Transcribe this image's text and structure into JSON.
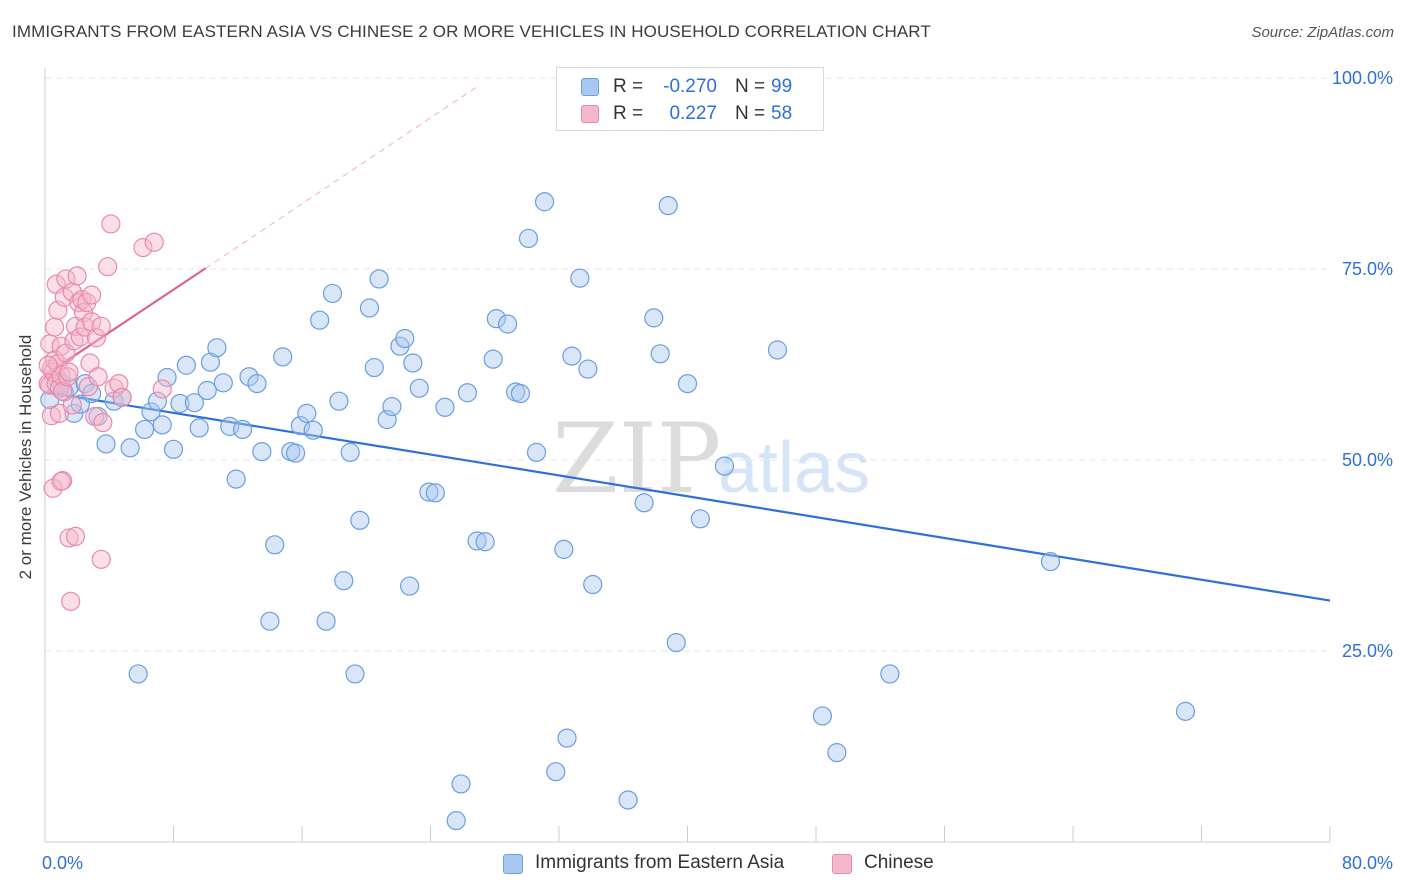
{
  "title": "IMMIGRANTS FROM EASTERN ASIA VS CHINESE 2 OR MORE VEHICLES IN HOUSEHOLD CORRELATION CHART",
  "source": "Source: ZipAtlas.com",
  "watermark": {
    "zip": "ZIP",
    "atlas": "atlas"
  },
  "colors": {
    "blue_fill": "#a8c8f0",
    "blue_stroke": "#6a9ee0",
    "blue_line": "#2f6fd8",
    "pink_fill": "#f5b7cb",
    "pink_stroke": "#e88aaa",
    "pink_line": "#e0628a",
    "grid": "#e6e6e6",
    "axis_text": "#2f6fd8"
  },
  "legend": {
    "rows": [
      {
        "r_label": "R =",
        "r_value": "-0.270",
        "n_label": "N =",
        "n_value": "99"
      },
      {
        "r_label": "R =",
        "r_value": "0.227",
        "n_label": "N =",
        "n_value": "58"
      }
    ]
  },
  "bottom_legend": {
    "series_1": "Immigrants from Eastern Asia",
    "series_2": "Chinese"
  },
  "chart_data": {
    "type": "scatter",
    "xlabel": "",
    "ylabel": "2 or more Vehicles in Household",
    "xlim": [
      0,
      80
    ],
    "ylim": [
      0,
      100
    ],
    "x_tick_labels": [
      "0.0%",
      "80.0%"
    ],
    "y_tick_labels": [
      "25.0%",
      "50.0%",
      "75.0%",
      "100.0%"
    ],
    "y_ticks": [
      25,
      50,
      75,
      100
    ],
    "grid": true,
    "legend_position": "top-center",
    "series": [
      {
        "name": "Immigrants from Eastern Asia",
        "color": "#a8c8f0",
        "r": -0.27,
        "n": 99,
        "trend": {
          "x": [
            0,
            80
          ],
          "y": [
            58.9,
            31.6
          ]
        },
        "points": [
          [
            0.3,
            57.9
          ],
          [
            0.8,
            60.5
          ],
          [
            1.0,
            60.0
          ],
          [
            1.2,
            58.9
          ],
          [
            1.5,
            59.5
          ],
          [
            1.8,
            56.1
          ],
          [
            2.2,
            57.3
          ],
          [
            2.5,
            60.0
          ],
          [
            2.9,
            58.7
          ],
          [
            3.3,
            55.7
          ],
          [
            3.8,
            52.1
          ],
          [
            4.3,
            57.7
          ],
          [
            4.8,
            58.2
          ],
          [
            5.3,
            51.6
          ],
          [
            5.8,
            22.0
          ],
          [
            6.2,
            54.0
          ],
          [
            6.6,
            56.3
          ],
          [
            7.0,
            57.7
          ],
          [
            7.3,
            54.6
          ],
          [
            7.6,
            60.8
          ],
          [
            8.0,
            51.4
          ],
          [
            8.4,
            57.4
          ],
          [
            8.8,
            62.4
          ],
          [
            9.3,
            57.5
          ],
          [
            9.6,
            54.2
          ],
          [
            10.1,
            59.1
          ],
          [
            10.3,
            62.8
          ],
          [
            10.7,
            64.7
          ],
          [
            11.1,
            60.1
          ],
          [
            11.5,
            54.4
          ],
          [
            11.9,
            47.5
          ],
          [
            12.3,
            54.0
          ],
          [
            12.7,
            60.9
          ],
          [
            13.2,
            60.0
          ],
          [
            13.5,
            51.1
          ],
          [
            14.0,
            28.9
          ],
          [
            14.3,
            38.9
          ],
          [
            14.8,
            63.5
          ],
          [
            15.3,
            51.1
          ],
          [
            15.6,
            50.9
          ],
          [
            15.9,
            54.5
          ],
          [
            16.3,
            56.1
          ],
          [
            16.7,
            53.9
          ],
          [
            17.1,
            68.3
          ],
          [
            17.5,
            28.9
          ],
          [
            17.9,
            71.8
          ],
          [
            18.3,
            57.7
          ],
          [
            18.6,
            34.2
          ],
          [
            19.0,
            51.0
          ],
          [
            19.3,
            22.0
          ],
          [
            19.6,
            42.1
          ],
          [
            20.2,
            69.9
          ],
          [
            20.5,
            62.1
          ],
          [
            20.8,
            73.7
          ],
          [
            21.3,
            55.3
          ],
          [
            21.6,
            57.0
          ],
          [
            22.1,
            64.9
          ],
          [
            22.4,
            65.9
          ],
          [
            22.7,
            33.5
          ],
          [
            22.9,
            62.7
          ],
          [
            23.3,
            59.4
          ],
          [
            23.9,
            45.8
          ],
          [
            24.3,
            45.7
          ],
          [
            24.9,
            56.9
          ],
          [
            25.6,
            2.8
          ],
          [
            25.9,
            7.6
          ],
          [
            26.3,
            58.8
          ],
          [
            26.9,
            39.4
          ],
          [
            27.4,
            39.3
          ],
          [
            27.9,
            63.2
          ],
          [
            28.1,
            68.5
          ],
          [
            28.8,
            67.8
          ],
          [
            29.3,
            58.9
          ],
          [
            29.6,
            58.7
          ],
          [
            30.1,
            79.0
          ],
          [
            30.6,
            51.0
          ],
          [
            31.1,
            83.8
          ],
          [
            31.8,
            9.2
          ],
          [
            32.3,
            38.3
          ],
          [
            32.5,
            13.6
          ],
          [
            32.8,
            63.6
          ],
          [
            33.3,
            73.8
          ],
          [
            33.8,
            61.9
          ],
          [
            34.1,
            33.7
          ],
          [
            36.3,
            5.5
          ],
          [
            37.3,
            44.4
          ],
          [
            37.9,
            68.6
          ],
          [
            38.3,
            63.9
          ],
          [
            38.8,
            83.3
          ],
          [
            39.3,
            26.1
          ],
          [
            40.8,
            42.3
          ],
          [
            42.3,
            49.2
          ],
          [
            45.6,
            64.4
          ],
          [
            48.4,
            16.5
          ],
          [
            49.3,
            11.7
          ],
          [
            52.6,
            22.0
          ],
          [
            62.6,
            36.7
          ],
          [
            71.0,
            17.1
          ],
          [
            40.0,
            60.0
          ]
        ]
      },
      {
        "name": "Chinese",
        "color": "#f5b7cb",
        "r": 0.227,
        "n": 58,
        "trend": {
          "x": [
            0,
            10
          ],
          "y": [
            61.1,
            75.1
          ]
        },
        "trend_extension": {
          "x": [
            10,
            27
          ],
          "y": [
            75.1,
            99.0
          ]
        },
        "points": [
          [
            0.2,
            60.0
          ],
          [
            0.3,
            65.2
          ],
          [
            0.3,
            59.8
          ],
          [
            0.4,
            61.9
          ],
          [
            0.4,
            55.8
          ],
          [
            0.5,
            61.5
          ],
          [
            0.5,
            46.3
          ],
          [
            0.6,
            63.1
          ],
          [
            0.6,
            67.4
          ],
          [
            0.7,
            60.0
          ],
          [
            0.7,
            73.0
          ],
          [
            0.8,
            62.6
          ],
          [
            0.8,
            69.6
          ],
          [
            0.9,
            59.4
          ],
          [
            0.9,
            56.1
          ],
          [
            1.0,
            64.9
          ],
          [
            1.0,
            61.1
          ],
          [
            1.1,
            47.3
          ],
          [
            1.1,
            59.0
          ],
          [
            1.2,
            71.3
          ],
          [
            1.3,
            73.7
          ],
          [
            1.3,
            64.0
          ],
          [
            1.4,
            60.9
          ],
          [
            1.5,
            61.5
          ],
          [
            1.5,
            39.8
          ],
          [
            1.6,
            31.5
          ],
          [
            1.7,
            72.0
          ],
          [
            1.7,
            57.2
          ],
          [
            1.8,
            65.6
          ],
          [
            1.9,
            67.5
          ],
          [
            1.9,
            40.0
          ],
          [
            2.0,
            74.1
          ],
          [
            2.1,
            70.6
          ],
          [
            2.2,
            66.1
          ],
          [
            2.3,
            71.0
          ],
          [
            2.4,
            69.3
          ],
          [
            2.5,
            67.4
          ],
          [
            2.6,
            70.6
          ],
          [
            2.7,
            59.6
          ],
          [
            2.8,
            62.7
          ],
          [
            2.9,
            68.1
          ],
          [
            2.9,
            71.6
          ],
          [
            3.1,
            55.7
          ],
          [
            3.2,
            66.0
          ],
          [
            3.3,
            60.9
          ],
          [
            3.5,
            67.5
          ],
          [
            3.5,
            37.0
          ],
          [
            3.6,
            54.9
          ],
          [
            3.9,
            75.3
          ],
          [
            4.3,
            59.4
          ],
          [
            4.6,
            60.0
          ],
          [
            4.8,
            58.2
          ],
          [
            6.1,
            77.8
          ],
          [
            6.8,
            78.5
          ],
          [
            7.3,
            59.3
          ],
          [
            4.1,
            80.9
          ],
          [
            1.0,
            47.2
          ],
          [
            0.2,
            62.4
          ]
        ]
      }
    ]
  }
}
